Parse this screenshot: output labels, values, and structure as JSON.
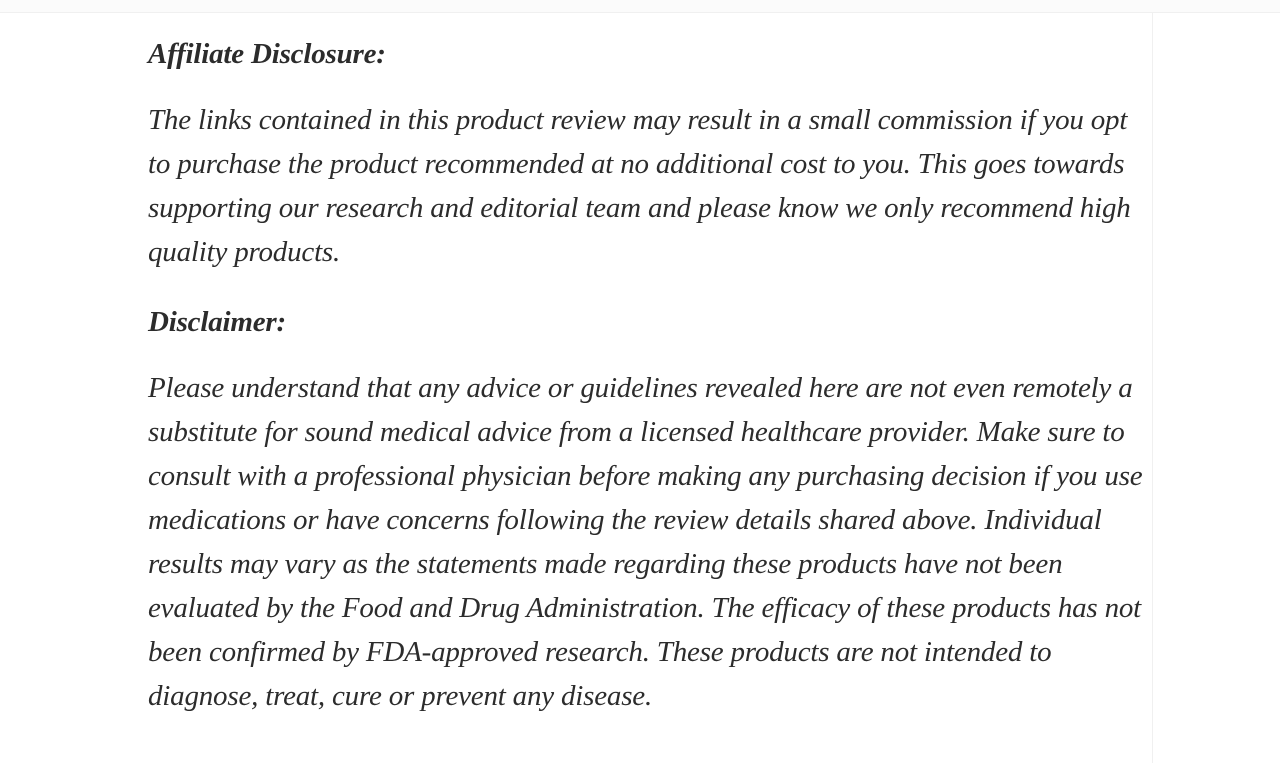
{
  "colors": {
    "text": "#2c2c2c",
    "background": "#ffffff",
    "hairline": "#f0f0f0",
    "top_strip": "#fbfbfb"
  },
  "article": {
    "sections": [
      {
        "heading": "Affiliate Disclosure:",
        "body": "The links contained in this product review may result in a small commission if you opt to purchase the product recommended at no additional cost to you. This goes towards supporting our research and editorial team and please know we only recommend high quality products."
      },
      {
        "heading": "Disclaimer:",
        "body": "Please understand that any advice or guidelines revealed here are not even remotely a substitute for sound medical advice from a licensed healthcare provider. Make sure to consult with a professional physician before making any purchasing decision if you use medications or have concerns following the review details shared above. Individual results may vary as the statements made regarding these products have not been evaluated by the Food and Drug Administration. The efficacy of these products has not been confirmed by FDA-approved research. These products are not intended to diagnose, treat, cure or prevent any disease."
      }
    ]
  }
}
